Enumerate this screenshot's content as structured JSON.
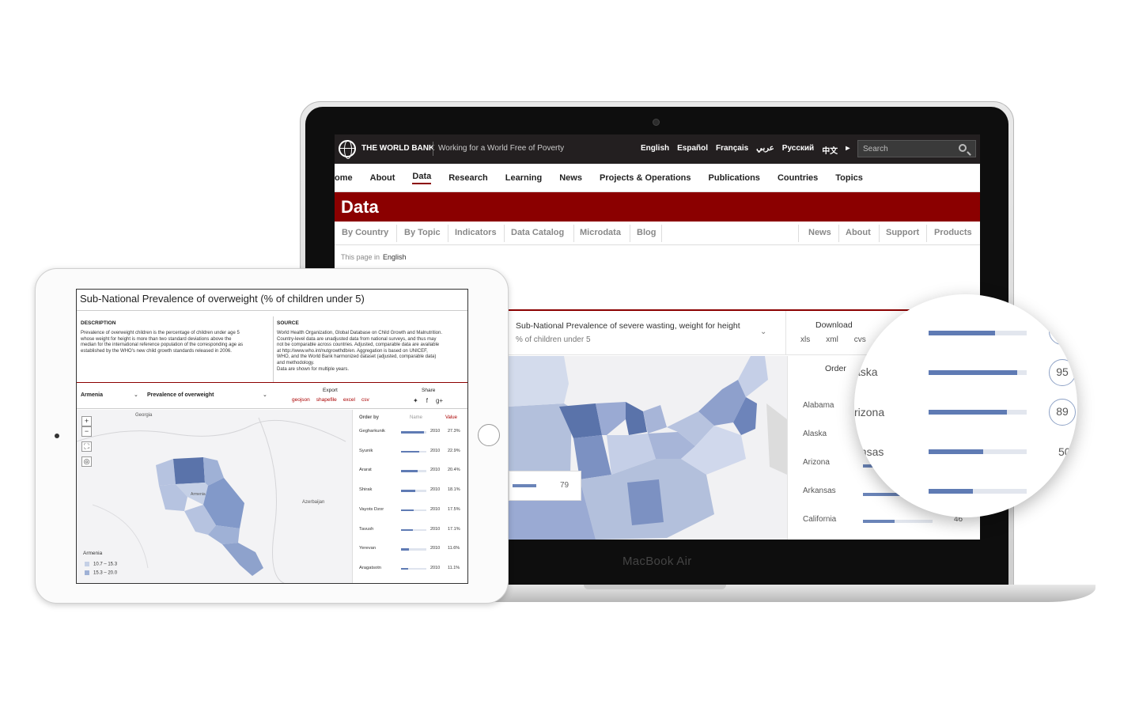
{
  "laptop": {
    "brand_label": "MacBook Air",
    "topbar": {
      "logo_text": "THE WORLD BANK",
      "tagline": "Working for a World Free of Poverty",
      "languages": [
        "English",
        "Español",
        "Français",
        "عربي",
        "Русский",
        "中文"
      ],
      "more_lang_glyph": "▸",
      "search_placeholder": "Search"
    },
    "main_nav": [
      "ome",
      "About",
      "Data",
      "Research",
      "Learning",
      "News",
      "Projects & Operations",
      "Publications",
      "Countries",
      "Topics"
    ],
    "active_nav": "Data",
    "banner_title": "Data",
    "sub_nav_left": [
      "By Country",
      "By Topic",
      "Indicators",
      "Data Catalog",
      "Microdata",
      "Blog"
    ],
    "sub_nav_right": [
      "News",
      "About",
      "Support",
      "Products"
    ],
    "page_in_label": "This page in",
    "page_in_lang": "English",
    "indicator": {
      "title": "Sub-National Prevalence of severe wasting, weight for height",
      "subtitle": "% of children under 5",
      "chevron": "⌄"
    },
    "download": {
      "label": "Download",
      "formats": [
        "xls",
        "xml",
        "cvs"
      ]
    },
    "order_label": "Order",
    "states": [
      {
        "name": "Alabama",
        "fraction": 0.0,
        "value": ""
      },
      {
        "name": "Alaska",
        "fraction": 0.0,
        "value": ""
      },
      {
        "name": "Arizona",
        "fraction": 0.5,
        "value": ""
      },
      {
        "name": "Arkansas",
        "fraction": 0.55,
        "value": ""
      },
      {
        "name": "California",
        "fraction": 0.45,
        "value": "46"
      }
    ],
    "tooltip_value": "79"
  },
  "magnifier": {
    "rows": [
      {
        "label": "a",
        "fraction": 0.68,
        "value": ""
      },
      {
        "label": "aska",
        "fraction": 0.9,
        "value": "95"
      },
      {
        "label": "rizona",
        "fraction": 0.8,
        "value": "89"
      },
      {
        "label": "ansas",
        "fraction": 0.56,
        "value": "50"
      },
      {
        "label": "",
        "fraction": 0.45,
        "value": ""
      }
    ]
  },
  "tablet": {
    "title": "Sub-National Prevalence of overweight (% of children under 5)",
    "description_heading": "DESCRIPTION",
    "description_lines": [
      "Prevalence of overweight children is the percentage of children under age 5",
      "whose weight for height is more than two standard deviations above the",
      "median for the international reference population of the corresponding age as",
      "established by the WHO's new child growth standards released in 2006."
    ],
    "source_heading": "SOURCE",
    "source_lines": [
      "World Health Organization, Global Database on Child Growth and Malnutrition.",
      "Country-level data are unadjusted data from national surveys, and thus may",
      "not be comparable across countries. Adjusted, comparable data are available",
      "at http://www.who.int/nutgrowthdb/en. Aggregation is based on UNICEF,",
      "WHO, and the World Bank harmonized dataset (adjusted, comparable data)",
      "and methodology.",
      "Data are shown for multiple years."
    ],
    "country_select": "Armenia",
    "indicator_select": "Prevalence of overweight",
    "export_label": "Export",
    "export_formats": [
      "geojson",
      "shapefile",
      "excel",
      "csv"
    ],
    "share_label": "Share",
    "share_icons": [
      "🐦",
      "f",
      "g+"
    ],
    "map_labels": {
      "north": "Georgia",
      "east": "Azerbaijan",
      "center": "Armenia"
    },
    "zoom_in": "+",
    "zoom_out": "−",
    "fullscreen": "⛶",
    "locate": "◎",
    "list_headers": {
      "order": "Order by",
      "name": "Name",
      "value": "Value"
    },
    "regions": [
      {
        "name": "Gegharkunik",
        "fraction": 0.9,
        "year": "2010",
        "value": "27.3%"
      },
      {
        "name": "Syunik",
        "fraction": 0.72,
        "year": "2010",
        "value": "22.9%"
      },
      {
        "name": "Ararat",
        "fraction": 0.65,
        "year": "2010",
        "value": "20.4%"
      },
      {
        "name": "Shirak",
        "fraction": 0.55,
        "year": "2010",
        "value": "18.1%"
      },
      {
        "name": "Vayots Dzor",
        "fraction": 0.5,
        "year": "2010",
        "value": "17.5%"
      },
      {
        "name": "Tavush",
        "fraction": 0.48,
        "year": "2010",
        "value": "17.1%"
      },
      {
        "name": "Yerevan",
        "fraction": 0.3,
        "year": "2010",
        "value": "11.6%"
      },
      {
        "name": "Aragatsotn",
        "fraction": 0.28,
        "year": "2010",
        "value": "11.1%"
      }
    ],
    "legend_title": "Armenia",
    "legend_items": [
      {
        "label": "10.7 – 15.3",
        "color": "#c5d0e6"
      },
      {
        "label": "15.3 – 20.0",
        "color": "#9fb1d6"
      }
    ]
  },
  "colors": {
    "wb_red": "#8b0000",
    "bar_blue": "#6a84b8",
    "map_dark": "#5a73aa"
  }
}
